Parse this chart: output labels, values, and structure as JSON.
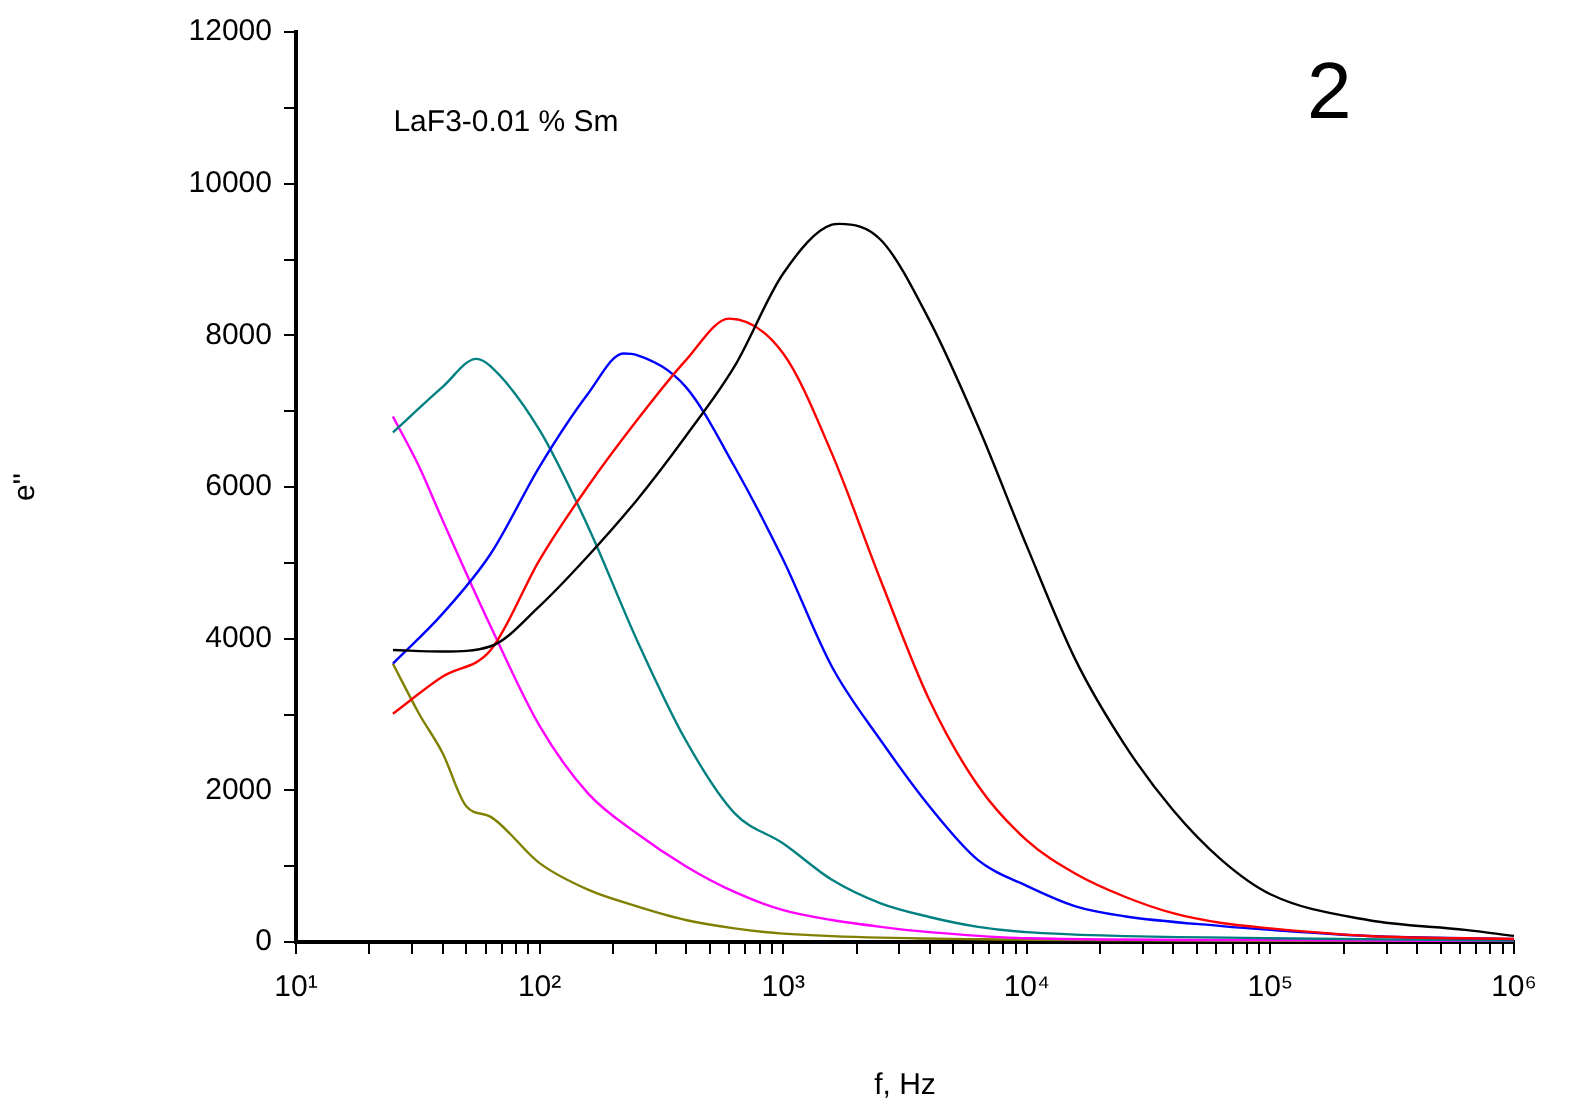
{
  "chart_data": {
    "type": "line",
    "xlabel": "f, Hz",
    "ylabel": "e''",
    "annotations": [
      "LaF3-0.01 % Sm",
      "2"
    ],
    "log": "x",
    "grid": false,
    "legend": false,
    "marker": "none",
    "line_style": "solid",
    "xlim": [
      10,
      1000000
    ],
    "ylim": [
      0,
      12000
    ],
    "xticks": [
      {
        "value": 10,
        "label": "10¹"
      },
      {
        "value": 20,
        "label": null
      },
      {
        "value": 30,
        "label": null
      },
      {
        "value": 40,
        "label": null
      },
      {
        "value": 50,
        "label": null
      },
      {
        "value": 60,
        "label": null
      },
      {
        "value": 70,
        "label": null
      },
      {
        "value": 80,
        "label": null
      },
      {
        "value": 90,
        "label": null
      },
      {
        "value": 100,
        "label": "10²"
      },
      {
        "value": 200,
        "label": null
      },
      {
        "value": 300,
        "label": null
      },
      {
        "value": 400,
        "label": null
      },
      {
        "value": 500,
        "label": null
      },
      {
        "value": 600,
        "label": null
      },
      {
        "value": 700,
        "label": null
      },
      {
        "value": 800,
        "label": null
      },
      {
        "value": 900,
        "label": null
      },
      {
        "value": 1000,
        "label": "10³"
      },
      {
        "value": 2000,
        "label": null
      },
      {
        "value": 3000,
        "label": null
      },
      {
        "value": 4000,
        "label": null
      },
      {
        "value": 5000,
        "label": null
      },
      {
        "value": 6000,
        "label": null
      },
      {
        "value": 7000,
        "label": null
      },
      {
        "value": 8000,
        "label": null
      },
      {
        "value": 9000,
        "label": null
      },
      {
        "value": 10000,
        "label": "10⁴"
      },
      {
        "value": 20000,
        "label": null
      },
      {
        "value": 30000,
        "label": null
      },
      {
        "value": 40000,
        "label": null
      },
      {
        "value": 50000,
        "label": null
      },
      {
        "value": 60000,
        "label": null
      },
      {
        "value": 70000,
        "label": null
      },
      {
        "value": 80000,
        "label": null
      },
      {
        "value": 90000,
        "label": null
      },
      {
        "value": 100000,
        "label": "10⁵"
      },
      {
        "value": 200000,
        "label": null
      },
      {
        "value": 300000,
        "label": null
      },
      {
        "value": 400000,
        "label": null
      },
      {
        "value": 500000,
        "label": null
      },
      {
        "value": 600000,
        "label": null
      },
      {
        "value": 700000,
        "label": null
      },
      {
        "value": 800000,
        "label": null
      },
      {
        "value": 900000,
        "label": null
      },
      {
        "value": 1000000,
        "label": "10⁶"
      }
    ],
    "yticks": [
      0,
      {
        "value": 1000,
        "label": null
      },
      2000,
      {
        "value": 3000,
        "label": null
      },
      4000,
      {
        "value": 5000,
        "label": null
      },
      6000,
      {
        "value": 7000,
        "label": null
      },
      8000,
      {
        "value": 9000,
        "label": null
      },
      10000,
      {
        "value": 11000,
        "label": null
      },
      12000
    ],
    "series": [
      {
        "color": "#000000",
        "x": [
          25,
          40,
          63,
          100,
          158,
          251,
          398,
          631,
          1000,
          1585,
          1700,
          2512,
          3981,
          6310,
          10000,
          15850,
          25120,
          39810,
          63100,
          100000,
          251200,
          631000,
          1000000
        ],
        "values": [
          3850,
          3830,
          3900,
          4430,
          5090,
          5830,
          6670,
          7590,
          8815,
          9460,
          9470,
          9260,
          8200,
          6800,
          5220,
          3720,
          2610,
          1740,
          1080,
          630,
          290,
          160,
          80
        ]
      },
      {
        "color": "#ff0000",
        "x": [
          25,
          40,
          63,
          100,
          158,
          251,
          398,
          600,
          1000,
          1585,
          2512,
          3981,
          6310,
          10000,
          15850,
          25120,
          39810,
          63100,
          100000,
          251200,
          1000000
        ],
        "values": [
          3010,
          3500,
          3850,
          5040,
          6010,
          6880,
          7670,
          8220,
          7760,
          6440,
          4770,
          3190,
          2060,
          1340,
          900,
          600,
          380,
          250,
          180,
          80,
          40
        ]
      },
      {
        "color": "#0000ff",
        "x": [
          25,
          40,
          63,
          100,
          158,
          221,
          251,
          398,
          631,
          1000,
          1585,
          2512,
          3981,
          6310,
          10000,
          15850,
          25120,
          63100,
          100000,
          251200,
          1000000
        ],
        "values": [
          3670,
          4330,
          5120,
          6270,
          7230,
          7760,
          7740,
          7320,
          6270,
          5040,
          3630,
          2660,
          1790,
          1080,
          740,
          470,
          340,
          210,
          160,
          80,
          40
        ]
      },
      {
        "color": "#008080",
        "x": [
          25,
          40,
          55,
          63,
          100,
          158,
          251,
          398,
          631,
          1000,
          1585,
          2512,
          3981,
          6310,
          10000,
          100000,
          1000000
        ],
        "values": [
          6720,
          7320,
          7690,
          7590,
          6750,
          5480,
          3980,
          2660,
          1700,
          1300,
          820,
          510,
          330,
          200,
          130,
          50,
          20
        ]
      },
      {
        "color": "#ff00ff",
        "x": [
          25,
          32,
          40,
          63,
          100,
          158,
          251,
          398,
          631,
          1000,
          1585,
          2512,
          3981,
          10000,
          100000,
          1000000
        ],
        "values": [
          6930,
          6270,
          5560,
          4160,
          2850,
          1960,
          1430,
          1000,
          660,
          420,
          290,
          200,
          130,
          50,
          25,
          10
        ]
      },
      {
        "color": "#808000",
        "x": [
          25,
          32,
          40,
          50,
          63,
          100,
          158,
          251,
          398,
          631,
          1000,
          10000,
          1000000
        ],
        "values": [
          3670,
          3010,
          2490,
          1790,
          1650,
          1040,
          690,
          470,
          290,
          180,
          110,
          30,
          5
        ]
      }
    ]
  }
}
